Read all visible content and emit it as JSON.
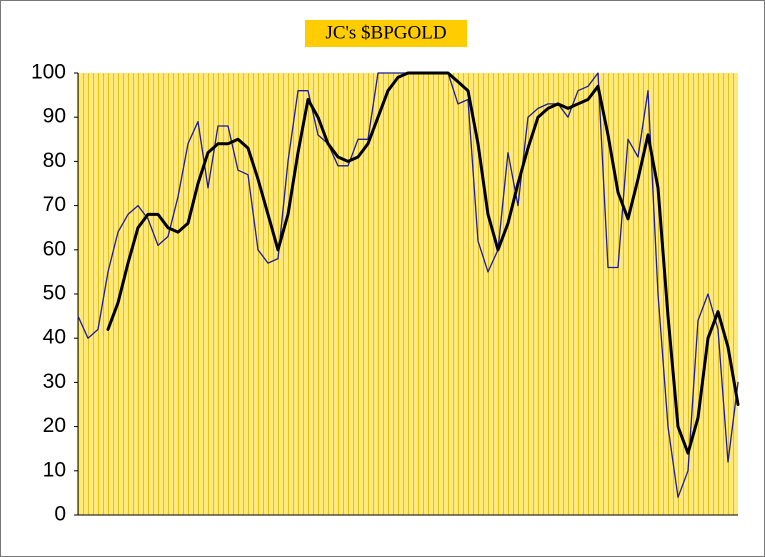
{
  "chart_data": {
    "type": "line",
    "title": "JC's $BPGOLD",
    "categories": [
      null,
      null,
      null,
      null,
      null,
      null,
      null,
      null,
      null,
      null,
      null,
      null,
      null,
      null,
      null,
      null,
      null,
      null,
      null,
      null,
      null,
      null,
      null,
      null,
      null,
      null,
      null,
      null,
      null,
      null,
      null,
      null,
      null,
      null,
      null,
      null,
      null,
      null,
      null,
      null,
      null,
      null,
      null,
      null,
      null,
      null,
      null,
      null,
      null,
      null,
      null,
      null,
      null,
      null,
      null,
      null,
      null,
      null,
      null,
      null,
      null,
      null,
      null,
      null,
      null,
      null,
      null
    ],
    "series": [
      {
        "color": "#1c1c9c",
        "width": 1.3,
        "values": [
          45,
          40,
          42,
          55,
          64,
          68,
          70,
          67,
          61,
          63,
          72,
          84,
          89,
          74,
          88,
          88,
          78,
          77,
          60,
          57,
          58,
          80,
          96,
          96,
          86,
          84,
          79,
          79,
          85,
          85,
          100,
          100,
          100,
          100,
          100,
          100,
          100,
          100,
          93,
          94,
          62,
          55,
          60,
          82,
          70,
          90,
          92,
          93,
          93,
          90,
          96,
          97,
          100,
          56,
          56,
          85,
          81,
          96,
          50,
          20,
          4,
          10,
          44,
          50,
          42,
          12,
          30
        ]
      },
      {
        "color": "#000000",
        "width": 3,
        "values": [
          null,
          null,
          null,
          42,
          48,
          57,
          65,
          68,
          68,
          65,
          64,
          66,
          75,
          82,
          84,
          84,
          85,
          83,
          76,
          68,
          60,
          68,
          82,
          94,
          90,
          84,
          81,
          80,
          81,
          84,
          90,
          96,
          99,
          100,
          100,
          100,
          100,
          100,
          98,
          96,
          84,
          68,
          60,
          66,
          75,
          83,
          90,
          92,
          93,
          92,
          93,
          94,
          97,
          86,
          73,
          67,
          76,
          86,
          74,
          45,
          20,
          14,
          22,
          40,
          46,
          38,
          25
        ]
      }
    ],
    "ylim": [
      0,
      100
    ],
    "yticks": [
      0,
      10,
      20,
      30,
      40,
      50,
      60,
      70,
      80,
      90,
      100
    ],
    "plot_background": "#ffe97a",
    "grid_color": "#e2c21a"
  }
}
